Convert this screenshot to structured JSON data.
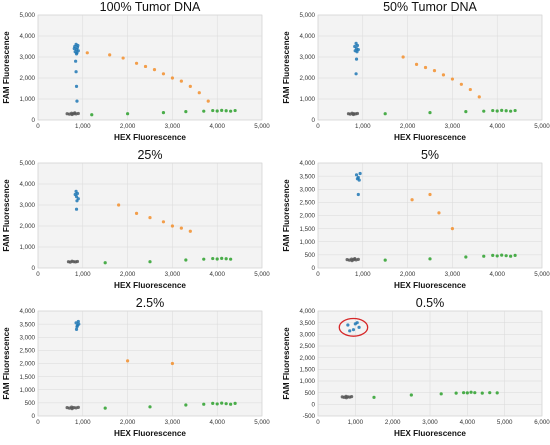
{
  "chart_data": [
    {
      "type": "scatter",
      "title": "100% Tumor DNA",
      "xlabel": "HEX Fluorescence",
      "ylabel": "FAM Fluorescence",
      "xlim": [
        0,
        5000
      ],
      "ylim": [
        0,
        5000
      ],
      "xticks": [
        "0",
        "1,000",
        "2,000",
        "3,000",
        "4,000",
        "5,000"
      ],
      "yticks": [
        "0",
        "1,000",
        "2,000",
        "3,000",
        "4,000",
        "5,000"
      ],
      "grid": true,
      "series": [
        {
          "color": "#1f77b4",
          "points": [
            [
              820,
              3500
            ],
            [
              860,
              3350
            ],
            [
              880,
              3450
            ],
            [
              900,
              3300
            ],
            [
              850,
              3600
            ],
            [
              830,
              3250
            ],
            [
              870,
              3200
            ],
            [
              890,
              3550
            ],
            [
              810,
              3400
            ],
            [
              860,
              3150
            ],
            [
              840,
              2800
            ],
            [
              850,
              2300
            ],
            [
              860,
              1600
            ],
            [
              870,
              900
            ]
          ]
        },
        {
          "color": "#f28e2b",
          "points": [
            [
              1100,
              3200
            ],
            [
              1600,
              3100
            ],
            [
              1900,
              2950
            ],
            [
              2200,
              2700
            ],
            [
              2400,
              2550
            ],
            [
              2600,
              2400
            ],
            [
              2800,
              2200
            ],
            [
              3000,
              2000
            ],
            [
              3200,
              1850
            ],
            [
              3400,
              1600
            ],
            [
              3600,
              1300
            ],
            [
              3800,
              900
            ]
          ]
        },
        {
          "color": "#2ca02c",
          "points": [
            [
              1200,
              250
            ],
            [
              2000,
              300
            ],
            [
              2800,
              350
            ],
            [
              3300,
              400
            ],
            [
              3700,
              420
            ],
            [
              3900,
              450
            ],
            [
              4000,
              430
            ],
            [
              4100,
              460
            ],
            [
              4200,
              440
            ],
            [
              4300,
              420
            ],
            [
              4400,
              450
            ]
          ]
        },
        {
          "color": "#555555",
          "points": [
            [
              650,
              300
            ],
            [
              700,
              280
            ],
            [
              750,
              320
            ],
            [
              800,
              300
            ],
            [
              850,
              290
            ],
            [
              900,
              310
            ],
            [
              760,
              260
            ],
            [
              820,
              340
            ]
          ]
        }
      ]
    },
    {
      "type": "scatter",
      "title": "50% Tumor DNA",
      "xlabel": "HEX Fluorescence",
      "ylabel": "FAM Fluorescence",
      "xlim": [
        0,
        5000
      ],
      "ylim": [
        0,
        5000
      ],
      "xticks": [
        "0",
        "1,000",
        "2,000",
        "3,000",
        "4,000",
        "5,000"
      ],
      "yticks": [
        "0",
        "1,000",
        "2,000",
        "3,000",
        "4,000",
        "5,000"
      ],
      "grid": true,
      "series": [
        {
          "color": "#1f77b4",
          "points": [
            [
              820,
              3500
            ],
            [
              860,
              3400
            ],
            [
              880,
              3550
            ],
            [
              900,
              3350
            ],
            [
              850,
              3650
            ],
            [
              830,
              3300
            ],
            [
              870,
              3250
            ],
            [
              860,
              2900
            ],
            [
              850,
              2200
            ]
          ]
        },
        {
          "color": "#f28e2b",
          "points": [
            [
              1900,
              3000
            ],
            [
              2200,
              2650
            ],
            [
              2400,
              2500
            ],
            [
              2600,
              2350
            ],
            [
              2800,
              2150
            ],
            [
              3000,
              1950
            ],
            [
              3200,
              1700
            ],
            [
              3400,
              1450
            ],
            [
              3600,
              1100
            ]
          ]
        },
        {
          "color": "#2ca02c",
          "points": [
            [
              1500,
              300
            ],
            [
              2500,
              350
            ],
            [
              3300,
              400
            ],
            [
              3700,
              420
            ],
            [
              3900,
              450
            ],
            [
              4000,
              430
            ],
            [
              4100,
              460
            ],
            [
              4200,
              440
            ],
            [
              4300,
              420
            ],
            [
              4400,
              450
            ]
          ]
        },
        {
          "color": "#555555",
          "points": [
            [
              680,
              300
            ],
            [
              720,
              280
            ],
            [
              760,
              320
            ],
            [
              800,
              300
            ],
            [
              840,
              290
            ],
            [
              880,
              310
            ],
            [
              790,
              260
            ]
          ]
        }
      ]
    },
    {
      "type": "scatter",
      "title": "25%",
      "xlabel": "HEX Fluorescence",
      "ylabel": "FAM Fluorescence",
      "xlim": [
        0,
        5000
      ],
      "ylim": [
        0,
        5000
      ],
      "xticks": [
        "0",
        "1,000",
        "2,000",
        "3,000",
        "4,000",
        "5,000"
      ],
      "yticks": [
        "0",
        "1,000",
        "2,000",
        "3,000",
        "4,000",
        "5,000"
      ],
      "grid": true,
      "series": [
        {
          "color": "#1f77b4",
          "points": [
            [
              830,
              3500
            ],
            [
              860,
              3400
            ],
            [
              880,
              3550
            ],
            [
              900,
              3300
            ],
            [
              850,
              3650
            ],
            [
              870,
              3200
            ],
            [
              860,
              2800
            ]
          ]
        },
        {
          "color": "#f28e2b",
          "points": [
            [
              1800,
              3000
            ],
            [
              2200,
              2600
            ],
            [
              2500,
              2400
            ],
            [
              2800,
              2200
            ],
            [
              3000,
              2000
            ],
            [
              3200,
              1900
            ],
            [
              3400,
              1750
            ]
          ]
        },
        {
          "color": "#2ca02c",
          "points": [
            [
              1500,
              250
            ],
            [
              2500,
              300
            ],
            [
              3300,
              380
            ],
            [
              3700,
              420
            ],
            [
              3900,
              450
            ],
            [
              4000,
              430
            ],
            [
              4100,
              460
            ],
            [
              4200,
              440
            ],
            [
              4300,
              420
            ]
          ]
        },
        {
          "color": "#555555",
          "points": [
            [
              680,
              300
            ],
            [
              720,
              280
            ],
            [
              760,
              320
            ],
            [
              800,
              300
            ],
            [
              840,
              290
            ],
            [
              880,
              310
            ]
          ]
        }
      ]
    },
    {
      "type": "scatter",
      "title": "5%",
      "xlabel": "HEX Fluorescence",
      "ylabel": "FAM Fluorescence",
      "xlim": [
        0,
        5000
      ],
      "ylim": [
        0,
        4000
      ],
      "xticks": [
        "0",
        "1,000",
        "2,000",
        "3,000",
        "4,000",
        "5,000"
      ],
      "yticks": [
        "0",
        "500",
        "1,000",
        "1,500",
        "2,000",
        "2,500",
        "3,000",
        "3,500",
        "4,000"
      ],
      "grid": true,
      "series": [
        {
          "color": "#1f77b4",
          "points": [
            [
              860,
              3550
            ],
            [
              900,
              3450
            ],
            [
              940,
              3600
            ],
            [
              880,
              3400
            ],
            [
              920,
              3350
            ],
            [
              900,
              2800
            ]
          ]
        },
        {
          "color": "#f28e2b",
          "points": [
            [
              2100,
              2600
            ],
            [
              2500,
              2800
            ],
            [
              2700,
              2100
            ],
            [
              3000,
              1500
            ]
          ]
        },
        {
          "color": "#2ca02c",
          "points": [
            [
              1500,
              300
            ],
            [
              2500,
              350
            ],
            [
              3300,
              420
            ],
            [
              3700,
              450
            ],
            [
              3900,
              480
            ],
            [
              4000,
              460
            ],
            [
              4100,
              490
            ],
            [
              4200,
              470
            ],
            [
              4300,
              450
            ],
            [
              4400,
              480
            ]
          ]
        },
        {
          "color": "#555555",
          "points": [
            [
              650,
              320
            ],
            [
              700,
              300
            ],
            [
              750,
              340
            ],
            [
              800,
              320
            ],
            [
              850,
              310
            ],
            [
              900,
              330
            ],
            [
              760,
              280
            ],
            [
              820,
              360
            ]
          ]
        }
      ]
    },
    {
      "type": "scatter",
      "title": "2.5%",
      "xlabel": "HEX Fluorescence",
      "ylabel": "FAM Fluorescence",
      "xlim": [
        0,
        5000
      ],
      "ylim": [
        0,
        4000
      ],
      "xticks": [
        "0",
        "1,000",
        "2,000",
        "3,000",
        "4,000",
        "5,000"
      ],
      "yticks": [
        "0",
        "500",
        "1,000",
        "1,500",
        "2,000",
        "2,500",
        "3,000",
        "3,500",
        "4,000"
      ],
      "grid": true,
      "series": [
        {
          "color": "#1f77b4",
          "points": [
            [
              850,
              3550
            ],
            [
              880,
              3450
            ],
            [
              900,
              3600
            ],
            [
              870,
              3400
            ],
            [
              910,
              3500
            ],
            [
              860,
              3300
            ]
          ]
        },
        {
          "color": "#f28e2b",
          "points": [
            [
              2000,
              2100
            ],
            [
              3000,
              2000
            ]
          ]
        },
        {
          "color": "#2ca02c",
          "points": [
            [
              1500,
              300
            ],
            [
              2500,
              350
            ],
            [
              3300,
              420
            ],
            [
              3700,
              450
            ],
            [
              3900,
              480
            ],
            [
              4000,
              460
            ],
            [
              4100,
              490
            ],
            [
              4200,
              470
            ],
            [
              4300,
              450
            ],
            [
              4400,
              480
            ]
          ]
        },
        {
          "color": "#555555",
          "points": [
            [
              650,
              320
            ],
            [
              700,
              300
            ],
            [
              750,
              340
            ],
            [
              800,
              320
            ],
            [
              850,
              310
            ],
            [
              900,
              330
            ],
            [
              760,
              280
            ]
          ]
        }
      ]
    },
    {
      "type": "scatter",
      "title": "0.5%",
      "xlabel": "HEX Fluorescence",
      "ylabel": "FAM Fluorescence",
      "xlim": [
        0,
        6000
      ],
      "ylim": [
        -500,
        4000
      ],
      "xticks": [
        "0",
        "1,000",
        "2,000",
        "3,000",
        "4,000",
        "5,000",
        "6,000"
      ],
      "yticks": [
        "-500",
        "0",
        "500",
        "1,000",
        "1,500",
        "2,000",
        "2,500",
        "3,000",
        "3,500",
        "4,000"
      ],
      "grid": true,
      "annotation": {
        "shape": "ellipse",
        "color": "#d62728",
        "cx": 950,
        "cy": 3300,
        "rx": 380,
        "ry": 380
      },
      "series": [
        {
          "color": "#1f77b4",
          "points": [
            [
              800,
              3400
            ],
            [
              1000,
              3450
            ],
            [
              950,
              3200
            ],
            [
              1100,
              3300
            ],
            [
              850,
              3150
            ],
            [
              1050,
              3500
            ]
          ]
        },
        {
          "color": "#f28e2b",
          "points": []
        },
        {
          "color": "#2ca02c",
          "points": [
            [
              1500,
              300
            ],
            [
              2500,
              400
            ],
            [
              3300,
              450
            ],
            [
              3700,
              480
            ],
            [
              3900,
              500
            ],
            [
              4000,
              490
            ],
            [
              4100,
              520
            ],
            [
              4200,
              500
            ],
            [
              4400,
              480
            ],
            [
              4600,
              500
            ],
            [
              4800,
              490
            ]
          ]
        },
        {
          "color": "#555555",
          "points": [
            [
              650,
              320
            ],
            [
              700,
              300
            ],
            [
              750,
              340
            ],
            [
              800,
              320
            ],
            [
              850,
              310
            ],
            [
              900,
              330
            ],
            [
              760,
              280
            ]
          ]
        }
      ]
    }
  ]
}
